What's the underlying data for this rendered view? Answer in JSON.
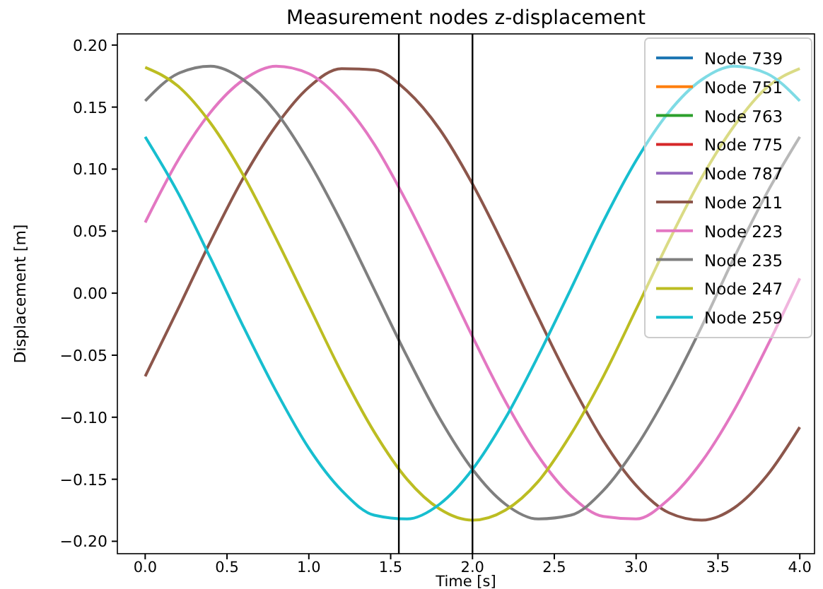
{
  "chart_data": {
    "type": "line",
    "title": "Measurement nodes z-displacement",
    "xlabel": "Time [s]",
    "ylabel": "Displacement [m]",
    "x": [
      0,
      0.2,
      0.4,
      0.6,
      0.8,
      1.0,
      1.2,
      1.4,
      1.6,
      1.8,
      2.0,
      2.2,
      2.4,
      2.6,
      2.8,
      3.0,
      3.2,
      3.4,
      3.6,
      3.8,
      4.0
    ],
    "series": [
      {
        "name": "Node 739",
        "color": "#1f77b4",
        "values": [
          null,
          null,
          null,
          null,
          null,
          null,
          null,
          null,
          null,
          null,
          null,
          null,
          null,
          null,
          null,
          null,
          null,
          null,
          null,
          null,
          null
        ]
      },
      {
        "name": "Node 751",
        "color": "#ff7f0e",
        "values": [
          null,
          null,
          null,
          null,
          null,
          null,
          null,
          null,
          null,
          null,
          null,
          null,
          null,
          null,
          null,
          null,
          null,
          null,
          null,
          null,
          null
        ]
      },
      {
        "name": "Node 763",
        "color": "#2ca02c",
        "values": [
          null,
          null,
          null,
          null,
          null,
          null,
          null,
          null,
          null,
          null,
          null,
          null,
          null,
          null,
          null,
          null,
          null,
          null,
          null,
          null,
          null
        ]
      },
      {
        "name": "Node 775",
        "color": "#d62728",
        "values": [
          null,
          null,
          null,
          null,
          null,
          null,
          null,
          null,
          null,
          null,
          null,
          null,
          null,
          null,
          null,
          null,
          null,
          null,
          null,
          null,
          null
        ]
      },
      {
        "name": "Node 787",
        "color": "#9467bd",
        "values": [
          null,
          null,
          null,
          null,
          null,
          null,
          null,
          null,
          null,
          null,
          null,
          null,
          null,
          null,
          null,
          null,
          null,
          null,
          null,
          null,
          null
        ]
      },
      {
        "name": "Node 211",
        "color": "#8c564b",
        "values": [
          -0.067,
          -0.013,
          0.042,
          0.093,
          0.135,
          0.166,
          0.181,
          0.18,
          0.163,
          0.132,
          0.088,
          0.036,
          -0.019,
          -0.072,
          -0.119,
          -0.155,
          -0.177,
          -0.183,
          -0.173,
          -0.147,
          -0.108
        ]
      },
      {
        "name": "Node 223",
        "color": "#e377c2",
        "values": [
          0.057,
          0.107,
          0.146,
          0.172,
          0.183,
          0.177,
          0.155,
          0.12,
          0.073,
          0.02,
          -0.035,
          -0.087,
          -0.131,
          -0.163,
          -0.18,
          -0.182,
          -0.166,
          -0.136,
          -0.094,
          -0.043,
          0.012
        ]
      },
      {
        "name": "Node 235",
        "color": "#7f7f7f",
        "values": [
          0.155,
          0.177,
          0.183,
          0.172,
          0.146,
          0.106,
          0.057,
          0.003,
          -0.051,
          -0.101,
          -0.142,
          -0.17,
          -0.182,
          -0.179,
          -0.159,
          -0.124,
          -0.079,
          -0.027,
          0.029,
          0.081,
          0.126
        ]
      },
      {
        "name": "Node 247",
        "color": "#bcbd22",
        "values": [
          0.182,
          0.167,
          0.137,
          0.095,
          0.044,
          -0.01,
          -0.064,
          -0.112,
          -0.15,
          -0.174,
          -0.183,
          -0.175,
          -0.152,
          -0.114,
          -0.067,
          -0.013,
          0.042,
          0.093,
          0.135,
          0.166,
          0.181
        ]
      },
      {
        "name": "Node 259",
        "color": "#17becf",
        "values": [
          0.126,
          0.081,
          0.028,
          -0.027,
          -0.079,
          -0.125,
          -0.159,
          -0.179,
          -0.182,
          -0.17,
          -0.142,
          -0.101,
          -0.051,
          0.003,
          0.058,
          0.107,
          0.146,
          0.172,
          0.183,
          0.177,
          0.155
        ]
      }
    ],
    "xlim": [
      -0.17,
      4.09
    ],
    "xticks": [
      {
        "value": 0,
        "label": "0.0"
      },
      {
        "value": 0.5,
        "label": "0.5"
      },
      {
        "value": 1,
        "label": "1.0"
      },
      {
        "value": 1.5,
        "label": "1.5"
      },
      {
        "value": 2,
        "label": "2.0"
      },
      {
        "value": 2.5,
        "label": "2.5"
      },
      {
        "value": 3,
        "label": "3.0"
      },
      {
        "value": 3.5,
        "label": "3.5"
      },
      {
        "value": 4,
        "label": "4.0"
      }
    ],
    "ylim": [
      -0.21,
      0.209
    ],
    "yticks": [
      {
        "value": -0.2,
        "label": "−0.20"
      },
      {
        "value": -0.15,
        "label": "−0.15"
      },
      {
        "value": -0.1,
        "label": "−0.10"
      },
      {
        "value": -0.05,
        "label": "−0.05"
      },
      {
        "value": 0,
        "label": "0.00"
      },
      {
        "value": 0.05,
        "label": "0.05"
      },
      {
        "value": 0.1,
        "label": "0.10"
      },
      {
        "value": 0.15,
        "label": "0.15"
      },
      {
        "value": 0.2,
        "label": "0.20"
      }
    ],
    "ref_lines": [
      {
        "axis": "x",
        "value": 1.55,
        "color": "#000000"
      },
      {
        "axis": "x",
        "value": 2.0,
        "color": "#000000"
      }
    ],
    "legend": "top right",
    "grid": false
  }
}
